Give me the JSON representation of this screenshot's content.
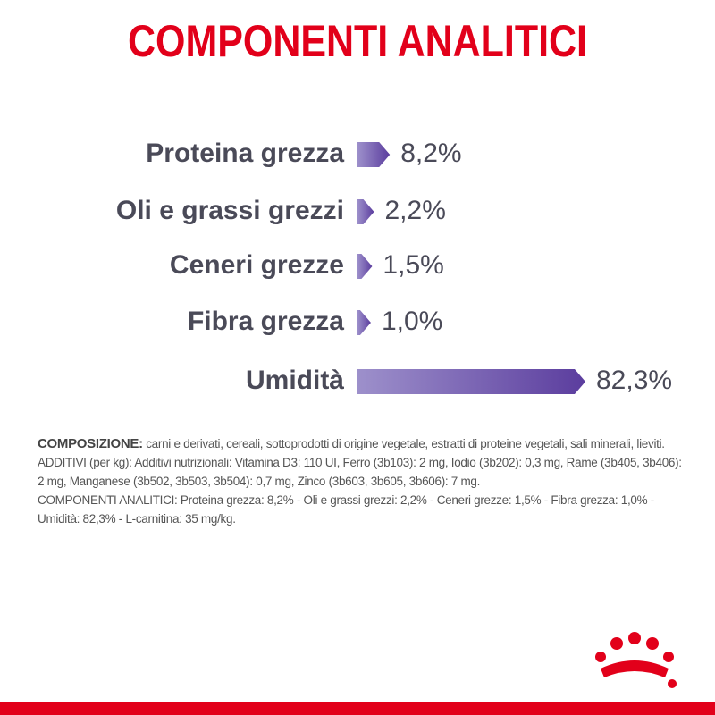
{
  "chart_data": {
    "type": "bar",
    "orientation": "horizontal",
    "title": "COMPONENTI ANALITICI",
    "categories": [
      "Proteina grezza",
      "Oli e grassi grezzi",
      "Ceneri grezze",
      "Fibra grezza",
      "Umidità"
    ],
    "values": [
      8.2,
      2.2,
      1.5,
      1.0,
      82.3
    ],
    "value_labels": [
      "8,2%",
      "2,2%",
      "1,5%",
      "1,0%",
      "82,3%"
    ],
    "color": "#5b3d9e"
  },
  "composition": {
    "label": "COMPOSIZIONE:",
    "text": "carni e derivati, cereali, sottoprodotti di origine vegetale, estratti di proteine vegetali, sali minerali, lieviti.",
    "additives": "ADDITIVI (per kg): Additivi nutrizionali: Vitamina D3: 110 UI, Ferro (3b103): 2 mg, Iodio (3b202): 0,3 mg, Rame (3b405, 3b406): 2 mg, Manganese (3b502, 3b503, 3b504): 0,7 mg, Zinco (3b603, 3b605, 3b606): 7 mg.",
    "analytic": "COMPONENTI ANALITICI: Proteina grezza: 8,2% - Oli e grassi grezzi: 2,2% - Ceneri grezze: 1,5% - Fibra grezza: 1,0% - Umidità: 82,3% - L-carnitina: 35 mg/kg."
  }
}
